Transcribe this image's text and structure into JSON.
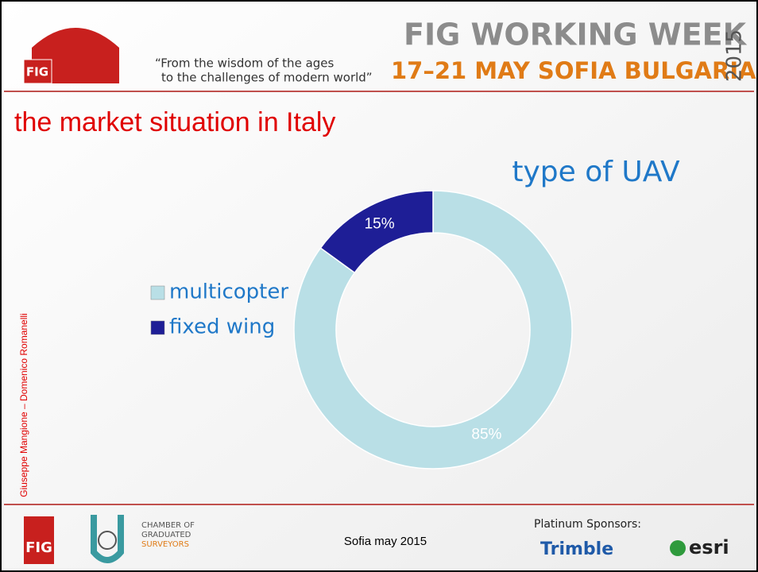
{
  "header": {
    "quote_line1": "“From the wisdom of the ages",
    "quote_line2": "to the challenges of modern world”",
    "event": "FIG WORKING WEEK",
    "dates": "17–21 MAY SOFIA BULGARIA",
    "year": "2015",
    "logo": "FIG"
  },
  "slide_title": "the market situation in Italy",
  "authors": "Giuseppe Mangione – Domenico Romanelli",
  "chart_data": {
    "type": "donut",
    "title": "type of UAV",
    "categories": [
      "multicopter",
      "fixed wing"
    ],
    "values": [
      85,
      15
    ],
    "value_labels": [
      "85%",
      "15%"
    ],
    "colors": [
      "#b9dfe6",
      "#1e1e96"
    ]
  },
  "footer": {
    "fig_logo": "FIG",
    "chamber_line1": "CHAMBER OF",
    "chamber_line2": "GRADUATED",
    "chamber_line3": "SURVEYORS",
    "date": "Sofia may 2015",
    "sponsors": "Platinum Sponsors:",
    "sponsor1": "Trimble",
    "sponsor2": "esri"
  }
}
